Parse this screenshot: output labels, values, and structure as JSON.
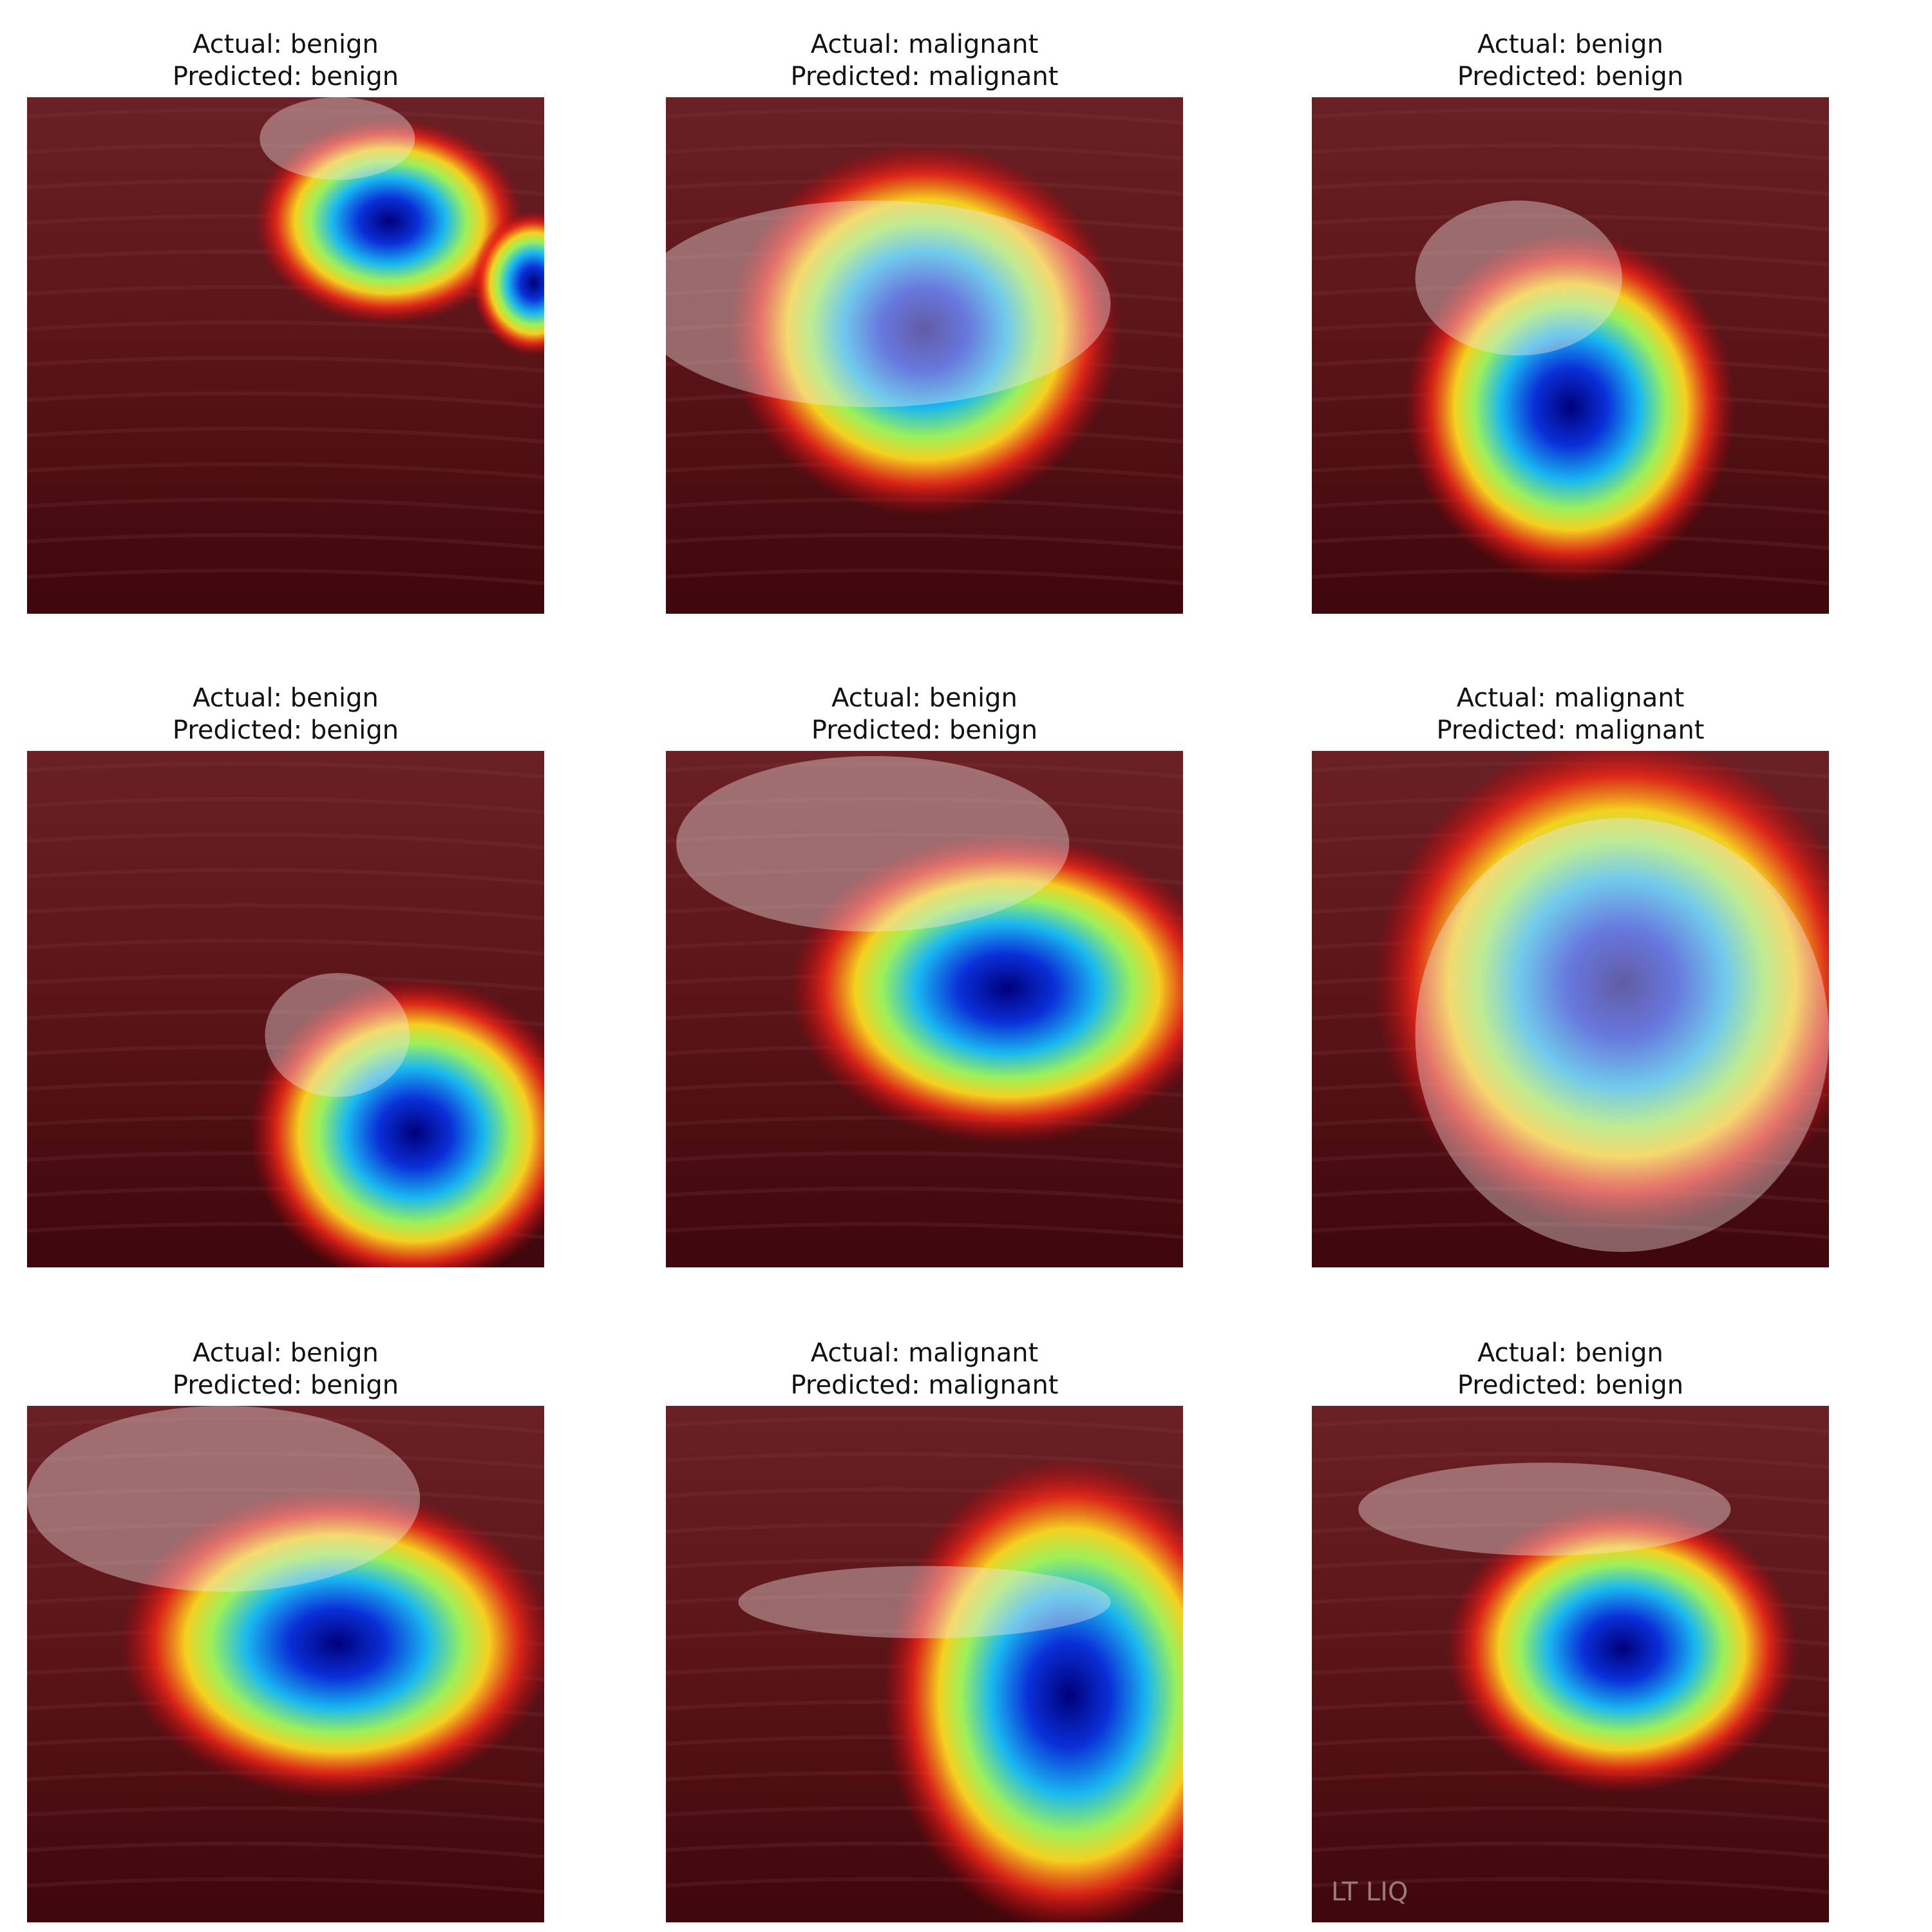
{
  "panels": [
    {
      "actual": "Actual: benign",
      "predicted": "Predicted: benign"
    },
    {
      "actual": "Actual: malignant",
      "predicted": "Predicted: malignant"
    },
    {
      "actual": "Actual: benign",
      "predicted": "Predicted: benign"
    },
    {
      "actual": "Actual: benign",
      "predicted": "Predicted: benign"
    },
    {
      "actual": "Actual: benign",
      "predicted": "Predicted: benign"
    },
    {
      "actual": "Actual: malignant",
      "predicted": "Predicted: malignant"
    },
    {
      "actual": "Actual: benign",
      "predicted": "Predicted: benign"
    },
    {
      "actual": "Actual: malignant",
      "predicted": "Predicted: malignant"
    },
    {
      "actual": "Actual: benign",
      "predicted": "Predicted: benign",
      "watermark": "LT LIQ"
    }
  ]
}
